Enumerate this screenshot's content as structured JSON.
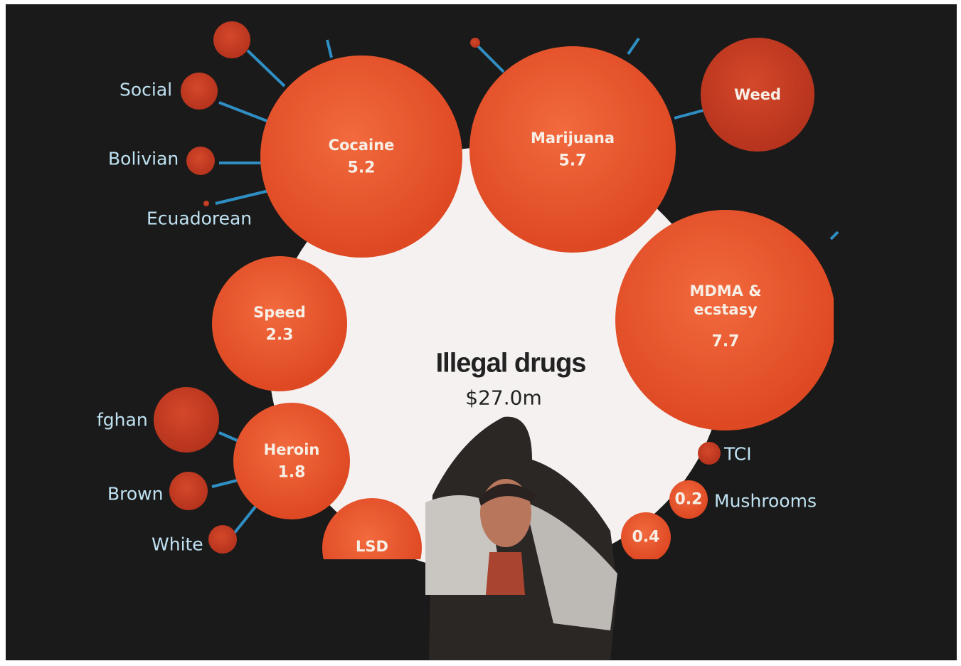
{
  "title": "Illegal drugs",
  "total": "$27.0m",
  "bubbles": [
    {
      "label": "Cocaine",
      "value": "5.2"
    },
    {
      "label": "Marijuana",
      "value": "5.7"
    },
    {
      "label": "Weed"
    },
    {
      "label": "MDMA & ecstasy",
      "value": "7.7"
    },
    {
      "label": "Speed",
      "value": "2.3"
    },
    {
      "label": "Heroin",
      "value": "1.8"
    },
    {
      "label": "LSD"
    },
    {
      "value": "0.4"
    },
    {
      "value": "0.2"
    }
  ],
  "side_labels": [
    "Social",
    "Bolivian",
    "Ecuadorean",
    "fghan",
    "Brown",
    "White",
    "TCI",
    "Mushrooms"
  ]
}
